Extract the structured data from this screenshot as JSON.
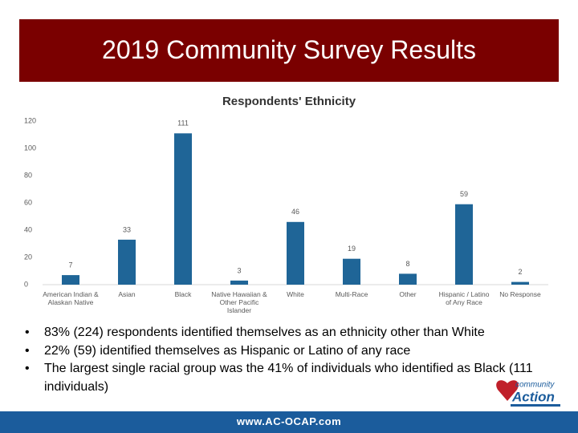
{
  "slide_title": "2019 Community Survey Results",
  "chart_data": {
    "type": "bar",
    "title": "Respondents' Ethnicity",
    "categories": [
      "American Indian & Alaskan Native",
      "Asian",
      "Black",
      "Native Hawaiian & Other Pacific Islander",
      "White",
      "Multi-Race",
      "Other",
      "Hispanic / Latino of Any Race",
      "No Response"
    ],
    "values": [
      7,
      33,
      111,
      3,
      46,
      19,
      8,
      59,
      2
    ],
    "color": "#1f6597",
    "ylim": [
      0,
      120
    ],
    "yticks": [
      0,
      20,
      40,
      60,
      80,
      100,
      120
    ],
    "grid": false
  },
  "bullets": [
    "83% (224) respondents identified themselves as an ethnicity other than White",
    "22% (59) identified themselves as Hispanic or Latino of any race",
    "The largest single racial group was the 41% of individuals who identified as Black (111 individuals)"
  ],
  "logo": {
    "line1": "community",
    "line2": "Action"
  },
  "footer": "www.AC-OCAP.com"
}
